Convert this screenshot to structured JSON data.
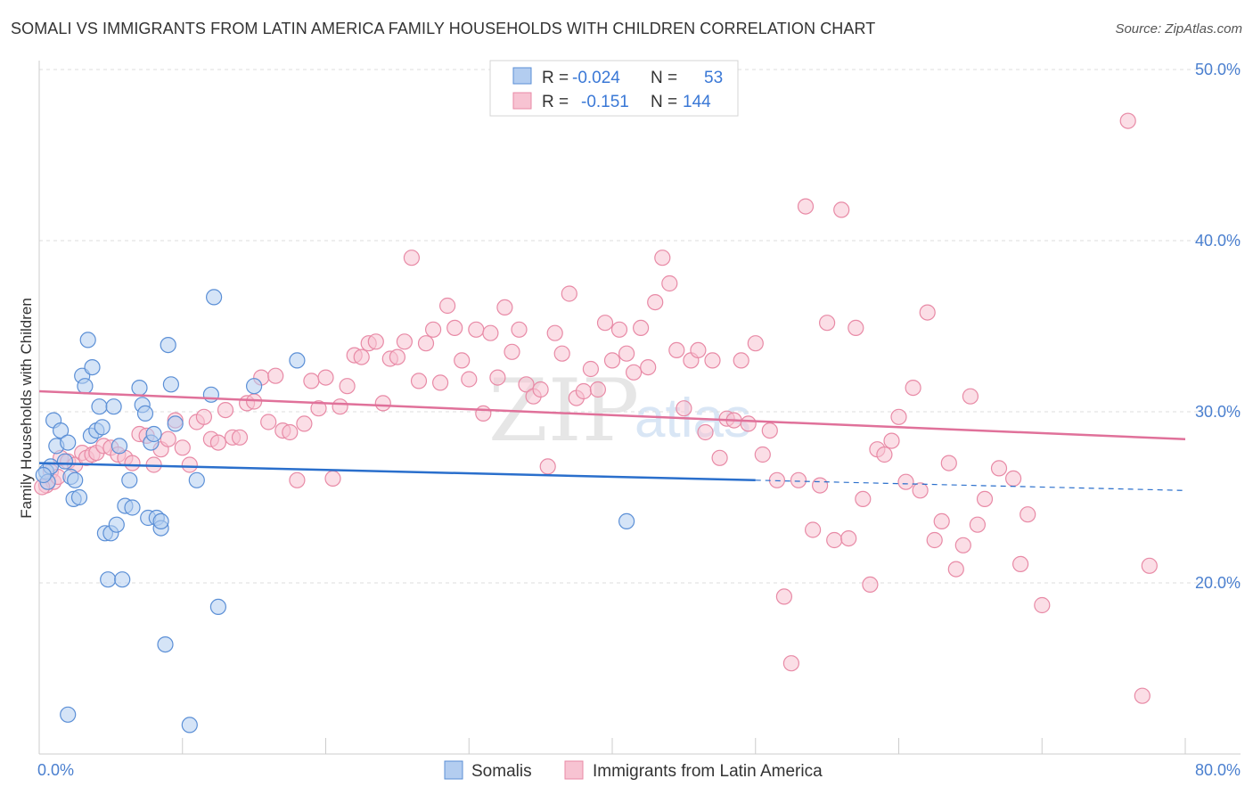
{
  "title": "SOMALI VS IMMIGRANTS FROM LATIN AMERICA FAMILY HOUSEHOLDS WITH CHILDREN CORRELATION CHART",
  "source": "Source: ZipAtlas.com",
  "watermark": {
    "zip": "ZIP",
    "atlas": "atlas"
  },
  "legend": {
    "rows": [
      {
        "r_label": "R =",
        "r_value": "-0.024",
        "n_label": "N =",
        "n_value": "53"
      },
      {
        "r_label": "R =",
        "r_value": "-0.151",
        "n_label": "N =",
        "n_value": "144"
      }
    ]
  },
  "bottom_legend": [
    "Somalis",
    "Immigrants from Latin America"
  ],
  "colors": {
    "blue_fill": "#b3cdf0",
    "blue_stroke": "#5b8fd6",
    "blue_line": "#2a6fcc",
    "pink_fill": "#f7c3d2",
    "pink_stroke": "#e88aa6",
    "pink_line": "#e0719a",
    "tick_text": "#4a7fcf"
  },
  "chart_data": {
    "type": "scatter",
    "title": "SOMALI VS IMMIGRANTS FROM LATIN AMERICA FAMILY HOUSEHOLDS WITH CHILDREN CORRELATION CHART",
    "xlabel": "",
    "ylabel": "Family Households with Children",
    "xlim": [
      0,
      80
    ],
    "ylim": [
      10,
      52
    ],
    "x_tick_labels": [
      "0.0%",
      "80.0%"
    ],
    "y_ticks": [
      20,
      30,
      40,
      50
    ],
    "y_tick_labels": [
      "20.0%",
      "30.0%",
      "40.0%",
      "50.0%"
    ],
    "grid": true,
    "series": [
      {
        "name": "Somalis",
        "r": -0.024,
        "n": 53,
        "trend": {
          "x": [
            0,
            50,
            80
          ],
          "y": [
            27.0,
            26.0,
            25.4
          ],
          "solid_until": 50
        },
        "points": [
          [
            0.5,
            26.5
          ],
          [
            0.8,
            26.8
          ],
          [
            0.6,
            25.9
          ],
          [
            1.0,
            29.5
          ],
          [
            1.2,
            28.0
          ],
          [
            1.5,
            28.9
          ],
          [
            1.8,
            27.1
          ],
          [
            2.0,
            28.2
          ],
          [
            2.2,
            26.2
          ],
          [
            2.4,
            24.9
          ],
          [
            2.5,
            26.0
          ],
          [
            2.8,
            25.0
          ],
          [
            3.0,
            32.1
          ],
          [
            3.2,
            31.5
          ],
          [
            3.4,
            34.2
          ],
          [
            3.6,
            28.6
          ],
          [
            3.7,
            32.6
          ],
          [
            4.0,
            28.9
          ],
          [
            4.2,
            30.3
          ],
          [
            4.4,
            29.1
          ],
          [
            4.6,
            22.9
          ],
          [
            4.8,
            20.2
          ],
          [
            5.0,
            22.9
          ],
          [
            5.2,
            30.3
          ],
          [
            5.4,
            23.4
          ],
          [
            5.6,
            28.0
          ],
          [
            5.8,
            20.2
          ],
          [
            6.0,
            24.5
          ],
          [
            6.3,
            26.0
          ],
          [
            6.5,
            24.4
          ],
          [
            7.0,
            31.4
          ],
          [
            7.2,
            30.4
          ],
          [
            7.4,
            29.9
          ],
          [
            7.6,
            23.8
          ],
          [
            7.8,
            28.2
          ],
          [
            8.0,
            28.7
          ],
          [
            8.2,
            23.8
          ],
          [
            8.5,
            23.2
          ],
          [
            9.0,
            33.9
          ],
          [
            9.2,
            31.6
          ],
          [
            9.5,
            29.3
          ],
          [
            10.5,
            11.7
          ],
          [
            11.0,
            26.0
          ],
          [
            12.0,
            31.0
          ],
          [
            12.2,
            36.7
          ],
          [
            12.5,
            18.6
          ],
          [
            15.0,
            31.5
          ],
          [
            18.0,
            33.0
          ],
          [
            2.0,
            12.3
          ],
          [
            8.8,
            16.4
          ],
          [
            8.5,
            23.6
          ],
          [
            41.0,
            23.6
          ],
          [
            0.3,
            26.3
          ]
        ]
      },
      {
        "name": "Immigrants from Latin America",
        "r": -0.151,
        "n": 144,
        "trend": {
          "x": [
            0,
            80
          ],
          "y": [
            31.2,
            28.4
          ]
        },
        "points": [
          [
            0.5,
            25.7
          ],
          [
            0.8,
            26.5
          ],
          [
            1.0,
            25.9
          ],
          [
            1.5,
            27.3
          ],
          [
            2.0,
            27.1
          ],
          [
            2.5,
            26.9
          ],
          [
            3.0,
            27.6
          ],
          [
            3.3,
            27.3
          ],
          [
            3.7,
            27.5
          ],
          [
            4.0,
            27.6
          ],
          [
            4.5,
            28.0
          ],
          [
            5.0,
            27.9
          ],
          [
            5.5,
            27.5
          ],
          [
            6.0,
            27.3
          ],
          [
            6.5,
            27.0
          ],
          [
            7.0,
            28.7
          ],
          [
            7.5,
            28.6
          ],
          [
            8.0,
            26.9
          ],
          [
            8.5,
            27.8
          ],
          [
            9.0,
            28.4
          ],
          [
            9.5,
            29.5
          ],
          [
            10.0,
            27.9
          ],
          [
            10.5,
            26.9
          ],
          [
            11.0,
            29.4
          ],
          [
            11.5,
            29.7
          ],
          [
            12.0,
            28.4
          ],
          [
            12.5,
            28.2
          ],
          [
            13.0,
            30.1
          ],
          [
            13.5,
            28.5
          ],
          [
            14.0,
            28.5
          ],
          [
            14.5,
            30.5
          ],
          [
            15.0,
            30.6
          ],
          [
            15.5,
            32.0
          ],
          [
            16.0,
            29.4
          ],
          [
            16.5,
            32.1
          ],
          [
            17.0,
            28.9
          ],
          [
            17.5,
            28.8
          ],
          [
            18.0,
            26.0
          ],
          [
            18.5,
            29.3
          ],
          [
            19.0,
            31.8
          ],
          [
            19.5,
            30.2
          ],
          [
            20.0,
            32.0
          ],
          [
            20.5,
            26.1
          ],
          [
            21.0,
            30.3
          ],
          [
            21.5,
            31.5
          ],
          [
            22.0,
            33.3
          ],
          [
            22.5,
            33.2
          ],
          [
            23.0,
            34.0
          ],
          [
            23.5,
            34.1
          ],
          [
            24.0,
            30.5
          ],
          [
            24.5,
            33.1
          ],
          [
            25.0,
            33.2
          ],
          [
            25.5,
            34.1
          ],
          [
            26.0,
            39.0
          ],
          [
            26.5,
            31.8
          ],
          [
            27.0,
            34.0
          ],
          [
            27.5,
            34.8
          ],
          [
            28.0,
            31.7
          ],
          [
            28.5,
            36.2
          ],
          [
            29.0,
            34.9
          ],
          [
            29.5,
            33.0
          ],
          [
            30.0,
            31.9
          ],
          [
            30.5,
            34.8
          ],
          [
            31.0,
            29.9
          ],
          [
            31.5,
            34.6
          ],
          [
            32.0,
            32.0
          ],
          [
            32.5,
            36.1
          ],
          [
            33.0,
            33.5
          ],
          [
            33.5,
            34.8
          ],
          [
            34.0,
            31.6
          ],
          [
            34.5,
            30.9
          ],
          [
            35.0,
            31.3
          ],
          [
            35.5,
            26.8
          ],
          [
            36.0,
            34.6
          ],
          [
            36.5,
            33.4
          ],
          [
            37.0,
            36.9
          ],
          [
            37.5,
            30.8
          ],
          [
            38.0,
            31.2
          ],
          [
            38.5,
            32.5
          ],
          [
            39.0,
            31.3
          ],
          [
            39.5,
            35.2
          ],
          [
            40.0,
            33.0
          ],
          [
            40.5,
            34.8
          ],
          [
            41.0,
            33.4
          ],
          [
            41.5,
            32.3
          ],
          [
            42.0,
            34.9
          ],
          [
            42.5,
            32.6
          ],
          [
            43.0,
            36.4
          ],
          [
            43.5,
            39.0
          ],
          [
            44.0,
            37.5
          ],
          [
            44.5,
            33.6
          ],
          [
            45.0,
            30.2
          ],
          [
            45.5,
            33.0
          ],
          [
            46.0,
            33.6
          ],
          [
            46.5,
            28.8
          ],
          [
            47.0,
            33.0
          ],
          [
            47.5,
            27.3
          ],
          [
            48.0,
            29.6
          ],
          [
            48.5,
            29.5
          ],
          [
            49.0,
            33.0
          ],
          [
            49.5,
            29.3
          ],
          [
            50.0,
            34.0
          ],
          [
            50.5,
            27.5
          ],
          [
            51.0,
            28.9
          ],
          [
            51.5,
            26.0
          ],
          [
            52.0,
            19.2
          ],
          [
            52.5,
            15.3
          ],
          [
            53.0,
            26.0
          ],
          [
            53.5,
            42.0
          ],
          [
            54.0,
            23.1
          ],
          [
            54.5,
            25.7
          ],
          [
            55.0,
            35.2
          ],
          [
            55.5,
            22.5
          ],
          [
            56.0,
            41.8
          ],
          [
            56.5,
            22.6
          ],
          [
            57.0,
            34.9
          ],
          [
            57.5,
            24.9
          ],
          [
            58.0,
            19.9
          ],
          [
            58.5,
            27.8
          ],
          [
            59.0,
            27.5
          ],
          [
            59.5,
            28.3
          ],
          [
            60.0,
            29.7
          ],
          [
            60.5,
            25.9
          ],
          [
            61.0,
            31.4
          ],
          [
            61.5,
            25.4
          ],
          [
            62.0,
            35.8
          ],
          [
            62.5,
            22.5
          ],
          [
            63.0,
            23.6
          ],
          [
            63.5,
            27.0
          ],
          [
            64.0,
            20.8
          ],
          [
            64.5,
            22.2
          ],
          [
            65.0,
            30.9
          ],
          [
            65.5,
            23.4
          ],
          [
            66.0,
            24.9
          ],
          [
            67.0,
            26.7
          ],
          [
            68.0,
            26.1
          ],
          [
            68.5,
            21.1
          ],
          [
            69.0,
            24.0
          ],
          [
            70.0,
            18.7
          ],
          [
            76.0,
            47.0
          ],
          [
            77.0,
            13.4
          ],
          [
            77.5,
            21.0
          ],
          [
            0.2,
            25.6
          ],
          [
            1.3,
            26.2
          ]
        ]
      }
    ]
  }
}
